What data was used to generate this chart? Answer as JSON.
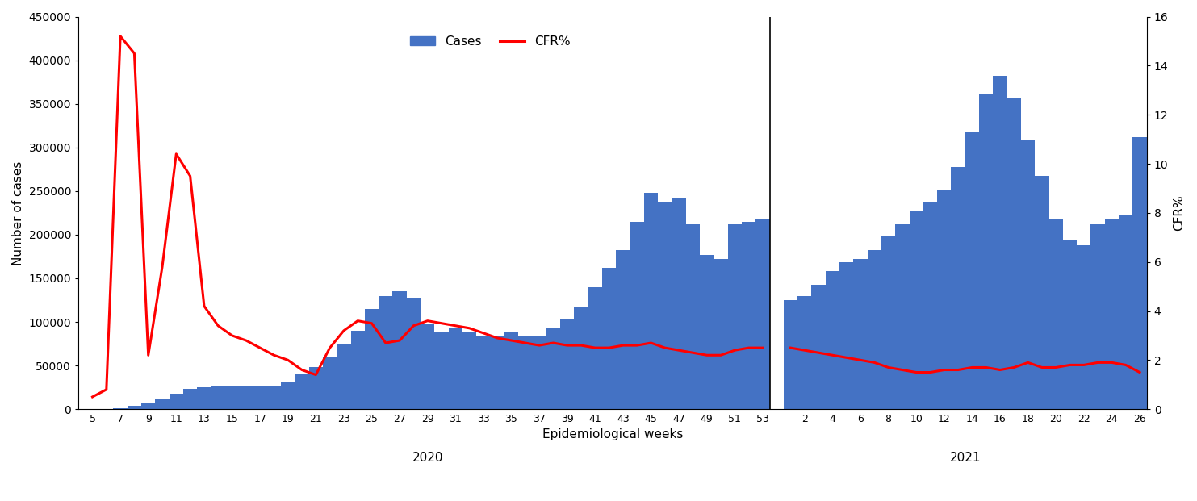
{
  "title": "",
  "xlabel": "Epidemiological weeks",
  "ylabel_left": "Number of cases",
  "ylabel_right": "CFR%",
  "background_color": "#ffffff",
  "bar_color": "#4472C4",
  "line_color": "#FF0000",
  "ylim_left": [
    0,
    450000
  ],
  "ylim_right": [
    0,
    16
  ],
  "yticks_left": [
    0,
    50000,
    100000,
    150000,
    200000,
    250000,
    300000,
    350000,
    400000,
    450000
  ],
  "yticks_right": [
    0,
    2,
    4,
    6,
    8,
    10,
    12,
    14,
    16
  ],
  "weeks_2020": [
    5,
    6,
    7,
    8,
    9,
    10,
    11,
    12,
    13,
    14,
    15,
    16,
    17,
    18,
    19,
    20,
    21,
    22,
    23,
    24,
    25,
    26,
    27,
    28,
    29,
    30,
    31,
    32,
    33,
    34,
    35,
    36,
    37,
    38,
    39,
    40,
    41,
    42,
    43,
    44,
    45,
    46,
    47,
    48,
    49,
    50,
    51,
    52,
    53
  ],
  "cases_2020": [
    500,
    500,
    1500,
    4000,
    7000,
    12000,
    18000,
    23000,
    25000,
    26000,
    27000,
    27000,
    26000,
    27000,
    32000,
    40000,
    48000,
    60000,
    75000,
    90000,
    115000,
    130000,
    135000,
    128000,
    97000,
    88000,
    93000,
    88000,
    83000,
    84000,
    88000,
    84000,
    84000,
    93000,
    103000,
    118000,
    140000,
    162000,
    182000,
    215000,
    248000,
    238000,
    242000,
    212000,
    177000,
    172000,
    212000,
    215000,
    218000
  ],
  "weeks_2021": [
    1,
    2,
    3,
    4,
    5,
    6,
    7,
    8,
    9,
    10,
    11,
    12,
    13,
    14,
    15,
    16,
    17,
    18,
    19,
    20,
    21,
    22,
    23,
    24,
    25,
    26
  ],
  "cases_2021": [
    125000,
    130000,
    143000,
    158000,
    168000,
    172000,
    182000,
    198000,
    212000,
    228000,
    238000,
    252000,
    278000,
    318000,
    362000,
    382000,
    357000,
    308000,
    267000,
    218000,
    193000,
    188000,
    212000,
    218000,
    222000,
    312000
  ],
  "cfr_weeks_2020": [
    5,
    6,
    7,
    8,
    9,
    10,
    11,
    12,
    13,
    14,
    15,
    16,
    17,
    18,
    19,
    20,
    21,
    22,
    23,
    24,
    25,
    26,
    27,
    28,
    29,
    30,
    31,
    32,
    33,
    34,
    35,
    36,
    37,
    38,
    39,
    40,
    41,
    42,
    43,
    44,
    45,
    46,
    47,
    48,
    49,
    50,
    51,
    52,
    53
  ],
  "cfr_2020": [
    0.5,
    0.8,
    15.2,
    14.5,
    2.2,
    5.8,
    10.4,
    9.5,
    4.2,
    3.4,
    3.0,
    2.8,
    2.5,
    2.2,
    2.0,
    1.6,
    1.4,
    2.5,
    3.2,
    3.6,
    3.5,
    2.7,
    2.8,
    3.4,
    3.6,
    3.5,
    3.4,
    3.3,
    3.1,
    2.9,
    2.8,
    2.7,
    2.6,
    2.7,
    2.6,
    2.6,
    2.5,
    2.5,
    2.6,
    2.6,
    2.7,
    2.5,
    2.4,
    2.3,
    2.2,
    2.2,
    2.4,
    2.5,
    2.5
  ],
  "cfr_weeks_2021": [
    1,
    2,
    3,
    4,
    5,
    6,
    7,
    8,
    9,
    10,
    11,
    12,
    13,
    14,
    15,
    16,
    17,
    18,
    19,
    20,
    21,
    22,
    23,
    24,
    25,
    26
  ],
  "cfr_2021": [
    2.5,
    2.4,
    2.3,
    2.2,
    2.1,
    2.0,
    1.9,
    1.7,
    1.6,
    1.5,
    1.5,
    1.6,
    1.6,
    1.7,
    1.7,
    1.6,
    1.7,
    1.9,
    1.7,
    1.7,
    1.8,
    1.8,
    1.9,
    1.9,
    1.8,
    1.5
  ],
  "xticks_2020": [
    5,
    7,
    9,
    11,
    13,
    15,
    17,
    19,
    21,
    23,
    25,
    27,
    29,
    31,
    33,
    35,
    37,
    39,
    41,
    43,
    45,
    47,
    49,
    51,
    53
  ],
  "xticks_2021": [
    2,
    4,
    6,
    8,
    10,
    12,
    14,
    16,
    18,
    20,
    22,
    24,
    26
  ],
  "line_width": 2.2,
  "separator_x_week": 53,
  "year_label_fontsize": 11,
  "axis_label_fontsize": 11,
  "tick_fontsize": 9
}
